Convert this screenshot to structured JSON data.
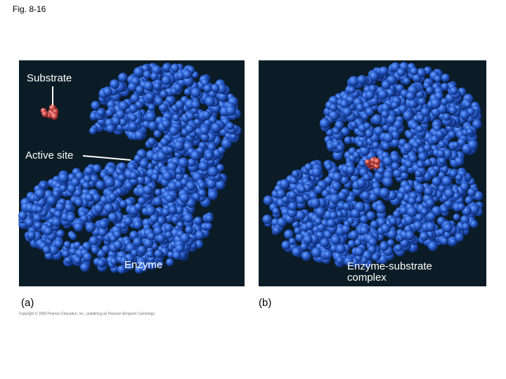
{
  "header": {
    "figure": "Fig. 8-16"
  },
  "panel_a": {
    "label": "(a)",
    "substrate": "Substrate",
    "active_site": "Active site",
    "enzyme": "Enzyme"
  },
  "panel_b": {
    "label": "(b)",
    "complex_line1": "Enzyme-substrate",
    "complex_line2": "complex"
  },
  "footer": {
    "copyright": "Copyright © 2008 Pearson Education, Inc., publishing as Pearson Benjamin Cummings"
  }
}
